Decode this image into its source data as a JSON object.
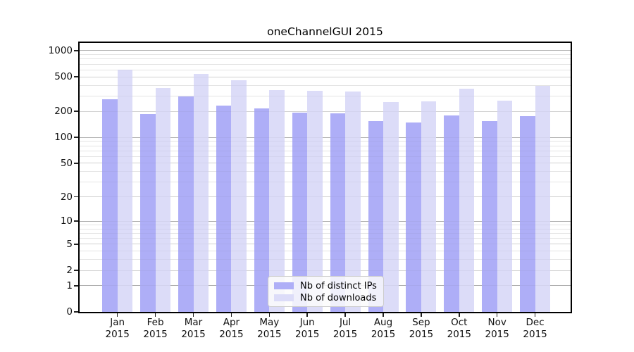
{
  "title": "oneChannelGUI 2015",
  "chart_data": {
    "type": "bar",
    "title": "oneChannelGUI 2015",
    "categories": [
      "Jan",
      "Feb",
      "Mar",
      "Apr",
      "May",
      "Jun",
      "Jul",
      "Aug",
      "Sep",
      "Oct",
      "Nov",
      "Dec"
    ],
    "xtick_year": "2015",
    "series": [
      {
        "name": "Nb of distinct IPs",
        "color": "#aeaef7",
        "values": [
          275,
          185,
          300,
          235,
          215,
          195,
          190,
          155,
          150,
          180,
          155,
          175
        ]
      },
      {
        "name": "Nb of downloads",
        "color": "#dcdcf8",
        "values": [
          600,
          370,
          540,
          460,
          350,
          345,
          340,
          255,
          260,
          365,
          265,
          395
        ]
      }
    ],
    "xlabel": "",
    "ylabel": "",
    "yscale": "log1p",
    "ylim": [
      0,
      1000
    ],
    "yticks": [
      0,
      1,
      2,
      5,
      10,
      20,
      50,
      100,
      200,
      500,
      1000
    ],
    "minor_yticks": [
      3,
      4,
      6,
      7,
      8,
      9,
      30,
      40,
      60,
      70,
      80,
      90,
      300,
      400,
      600,
      700,
      800,
      900
    ],
    "grid": true,
    "legend_position": "lower center inside"
  },
  "colors": {
    "decade_gridline": "#b4b4b4",
    "labeled_gridline": "#d9d9d9",
    "minor_gridline": "#eeeeee",
    "axis_frame": "#000000",
    "background": "#ffffff"
  }
}
